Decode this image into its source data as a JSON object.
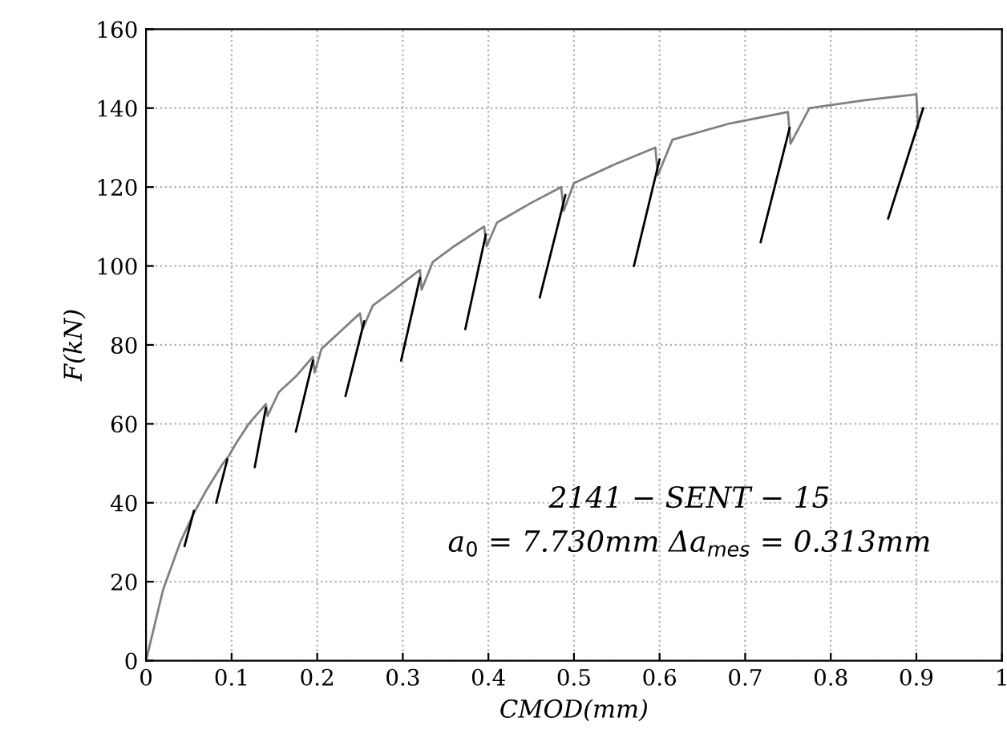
{
  "chart_data": {
    "type": "line",
    "xlabel": "CMOD(mm)",
    "ylabel": "F(kN)",
    "xlim": [
      0,
      1
    ],
    "xticks": [
      0,
      0.1,
      0.2,
      0.3,
      0.4,
      0.5,
      0.6,
      0.7,
      0.8,
      0.9,
      1
    ],
    "ylim": [
      0,
      160
    ],
    "yticks": [
      0,
      20,
      40,
      60,
      80,
      100,
      120,
      140,
      160
    ],
    "grid": true,
    "line_style": "solid",
    "marker": "none",
    "annotations": [
      "2141 − SENT − 15",
      "a$_{0}$ = 7.730mm Δa$_{mes}$ = 0.313mm"
    ],
    "series": [
      {
        "color": "#808080",
        "x": [
          0,
          0.02,
          0.04,
          0.055,
          0.07,
          0.09,
          0.097,
          0.105,
          0.12,
          0.14,
          0.142,
          0.155,
          0.175,
          0.195,
          0.197,
          0.205,
          0.23,
          0.25,
          0.253,
          0.265,
          0.29,
          0.32,
          0.322,
          0.335,
          0.36,
          0.395,
          0.398,
          0.41,
          0.45,
          0.485,
          0.488,
          0.5,
          0.55,
          0.595,
          0.598,
          0.615,
          0.68,
          0.75,
          0.753,
          0.775,
          0.84,
          0.9,
          0.902
        ],
        "values": [
          0,
          18,
          30,
          37,
          43,
          50,
          52,
          55,
          60,
          65,
          62,
          68,
          72,
          77,
          73,
          79,
          84,
          88,
          84,
          90,
          94,
          99,
          94,
          101,
          105,
          110,
          105,
          111,
          116,
          120,
          114,
          121,
          126,
          130,
          123,
          132,
          136,
          139,
          131,
          140,
          142,
          143.5,
          135
        ]
      },
      {
        "color": "#000000",
        "x": [
          0.045,
          0.056
        ],
        "values": [
          29,
          38
        ]
      },
      {
        "color": "#000000",
        "x": [
          0.082,
          0.095
        ],
        "values": [
          40,
          51
        ]
      },
      {
        "color": "#000000",
        "x": [
          0.127,
          0.14
        ],
        "values": [
          49,
          64
        ]
      },
      {
        "color": "#000000",
        "x": [
          0.175,
          0.195
        ],
        "values": [
          58,
          76
        ]
      },
      {
        "color": "#000000",
        "x": [
          0.233,
          0.255
        ],
        "values": [
          67,
          86
        ]
      },
      {
        "color": "#000000",
        "x": [
          0.298,
          0.32
        ],
        "values": [
          76,
          97
        ]
      },
      {
        "color": "#000000",
        "x": [
          0.373,
          0.397
        ],
        "values": [
          84,
          108
        ]
      },
      {
        "color": "#000000",
        "x": [
          0.46,
          0.49
        ],
        "values": [
          92,
          118
        ]
      },
      {
        "color": "#000000",
        "x": [
          0.57,
          0.6
        ],
        "values": [
          100,
          127
        ]
      },
      {
        "color": "#000000",
        "x": [
          0.718,
          0.752
        ],
        "values": [
          106,
          135
        ]
      },
      {
        "color": "#000000",
        "x": [
          0.867,
          0.908
        ],
        "values": [
          112,
          140
        ]
      }
    ]
  }
}
